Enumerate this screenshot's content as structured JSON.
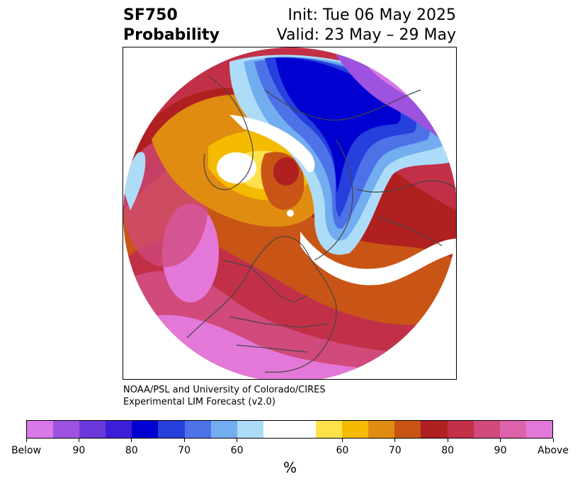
{
  "title": {
    "line1": "SF750",
    "line2": "Probability",
    "init": "Init: Tue 06 May 2025",
    "valid": "Valid: 23 May – 29 May"
  },
  "credit": {
    "line1": "NOAA/PSL and University of Colorado/CIRES",
    "line2": "Experimental LIM Forecast (v2.0)"
  },
  "colorbar": {
    "colors": [
      "#d978e8",
      "#9d52e0",
      "#6b38db",
      "#3d1ed8",
      "#0000d0",
      "#2540dc",
      "#4d72e8",
      "#72adf0",
      "#addcf8",
      "#ffffff",
      "#ffffff",
      "#ffe14c",
      "#f5bb00",
      "#e08c10",
      "#c85516",
      "#b02020",
      "#c23048",
      "#d04a7c",
      "#dc62ac",
      "#e478d8"
    ],
    "tick_labels": [
      "Below",
      "90",
      "80",
      "70",
      "60",
      "60",
      "70",
      "80",
      "90",
      "Above"
    ],
    "unit": "%"
  },
  "map": {
    "projection": "north polar stereographic",
    "palette": {
      "above_max": "#e478d8",
      "above_90": "#d04a7c",
      "above_80": "#c23048",
      "above_75": "#b02020",
      "above_70": "#c85516",
      "above_65": "#e08c10",
      "above_60": "#f5bb00",
      "above_55": "#ffe14c",
      "neutral": "#ffffff",
      "below_55": "#addcf8",
      "below_60": "#72adf0",
      "below_65": "#4d72e8",
      "below_75": "#2540dc",
      "below_85": "#0000d0",
      "below_90": "#9d52e0"
    }
  }
}
